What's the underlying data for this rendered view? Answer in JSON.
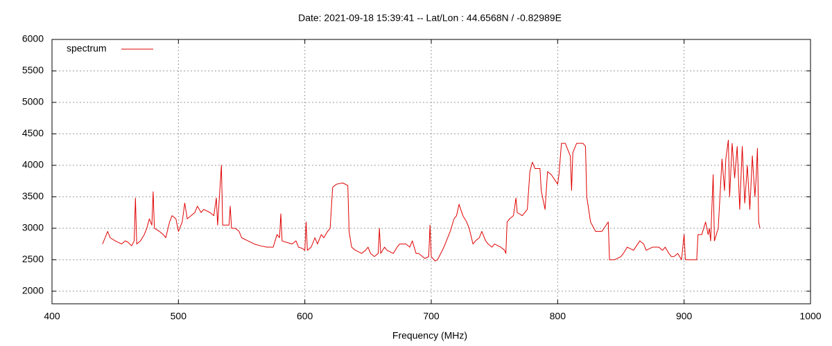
{
  "chart_data": {
    "type": "line",
    "title": "Date: 2021-09-18 15:39:41  --  Lat/Lon : 44.6568N / -0.82989E",
    "x_label": "Frequency (MHz)",
    "xlim": [
      400,
      1000
    ],
    "xticks": [
      400,
      500,
      600,
      700,
      800,
      900,
      1000
    ],
    "ylim": [
      1800,
      6000
    ],
    "yticks": [
      2000,
      2500,
      3000,
      3500,
      4000,
      4500,
      5000,
      5500,
      6000
    ],
    "grid": true,
    "legend": "top-left",
    "x": [
      440,
      442,
      444,
      446,
      450,
      455,
      458,
      460,
      463,
      465,
      466,
      467,
      470,
      473,
      475,
      477,
      479,
      480,
      481,
      485,
      488,
      490,
      493,
      495,
      498,
      500,
      503,
      505,
      507,
      510,
      513,
      515,
      518,
      520,
      525,
      528,
      530,
      531,
      534,
      535,
      540,
      541,
      542,
      545,
      548,
      550,
      555,
      560,
      565,
      570,
      575,
      578,
      580,
      581,
      582,
      585,
      590,
      593,
      595,
      598,
      600,
      601,
      602,
      605,
      608,
      610,
      613,
      615,
      618,
      620,
      622,
      625,
      630,
      634,
      635,
      637,
      640,
      645,
      648,
      650,
      652,
      655,
      658,
      659,
      660,
      663,
      665,
      670,
      673,
      675,
      680,
      683,
      685,
      688,
      690,
      695,
      698,
      699,
      700,
      703,
      705,
      710,
      715,
      718,
      720,
      722,
      725,
      728,
      730,
      733,
      735,
      738,
      740,
      743,
      745,
      748,
      750,
      755,
      758,
      759,
      760,
      762,
      765,
      767,
      768,
      772,
      776,
      778,
      780,
      782,
      786,
      787,
      790,
      792,
      795,
      800,
      801,
      803,
      806,
      808,
      810,
      811,
      812,
      815,
      820,
      822,
      823,
      826,
      830,
      835,
      840,
      841,
      845,
      850,
      852,
      855,
      860,
      865,
      868,
      870,
      875,
      880,
      883,
      885,
      888,
      890,
      892,
      895,
      898,
      900,
      901,
      905,
      910,
      911,
      914,
      917,
      919,
      920,
      921,
      923,
      924,
      927,
      930,
      932,
      933,
      935,
      936,
      938,
      940,
      942,
      944,
      946,
      948,
      950,
      952,
      954,
      956,
      957,
      958,
      959,
      960
    ],
    "series": [
      {
        "name": "spectrum",
        "color": "#e00000",
        "values": [
          2750,
          2850,
          2950,
          2850,
          2800,
          2750,
          2800,
          2780,
          2720,
          2800,
          3480,
          2750,
          2800,
          2900,
          3000,
          3150,
          3050,
          3580,
          3000,
          2950,
          2900,
          2850,
          3100,
          3200,
          3150,
          2950,
          3100,
          3400,
          3150,
          3200,
          3250,
          3350,
          3250,
          3300,
          3250,
          3200,
          3480,
          3050,
          4000,
          3050,
          3050,
          3350,
          3000,
          3000,
          2950,
          2850,
          2800,
          2750,
          2720,
          2700,
          2700,
          2900,
          2850,
          3230,
          2800,
          2780,
          2750,
          2800,
          2700,
          2680,
          2650,
          3100,
          2650,
          2700,
          2850,
          2750,
          2900,
          2850,
          2950,
          3000,
          3650,
          3700,
          3720,
          3680,
          2950,
          2700,
          2650,
          2600,
          2650,
          2700,
          2600,
          2550,
          2600,
          3000,
          2600,
          2700,
          2650,
          2600,
          2700,
          2750,
          2750,
          2700,
          2800,
          2600,
          2600,
          2520,
          2550,
          3050,
          2550,
          2480,
          2500,
          2700,
          2950,
          3150,
          3200,
          3380,
          3200,
          3100,
          3000,
          2750,
          2800,
          2850,
          2950,
          2800,
          2750,
          2700,
          2750,
          2700,
          2650,
          2600,
          3100,
          3150,
          3200,
          3480,
          3250,
          3200,
          3300,
          3900,
          4050,
          3950,
          3950,
          3600,
          3300,
          3900,
          3850,
          3700,
          3850,
          4350,
          4350,
          4250,
          4150,
          3600,
          4200,
          4350,
          4350,
          4300,
          3500,
          3100,
          2950,
          2950,
          3100,
          2500,
          2500,
          2550,
          2600,
          2700,
          2650,
          2800,
          2750,
          2650,
          2700,
          2700,
          2650,
          2700,
          2600,
          2550,
          2550,
          2600,
          2500,
          2900,
          2500,
          2500,
          2500,
          2900,
          2900,
          3100,
          2900,
          3000,
          2800,
          3850,
          2800,
          3000,
          4100,
          3600,
          4100,
          4400,
          3500,
          4350,
          3800,
          4300,
          3300,
          4300,
          3400,
          4000,
          3300,
          4150,
          3500,
          3800,
          4270,
          3100,
          3000
        ]
      }
    ]
  }
}
